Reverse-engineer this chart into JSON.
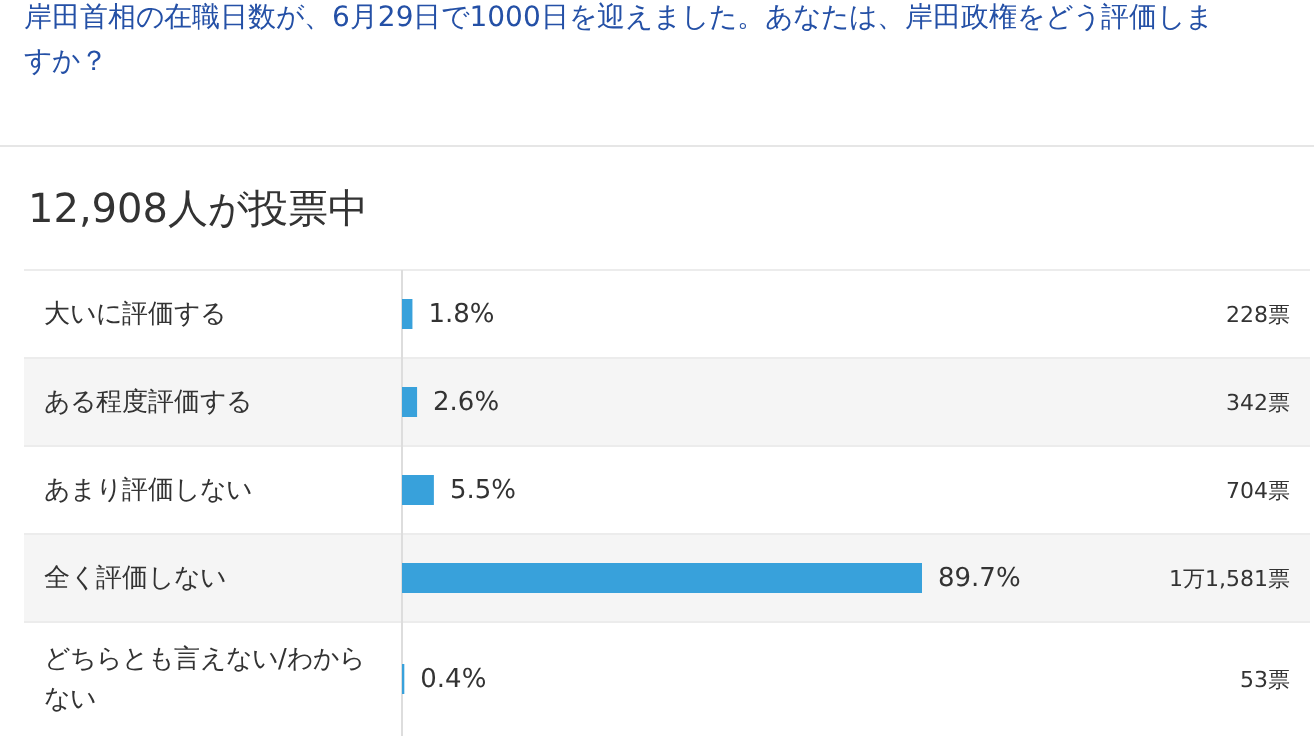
{
  "chart_data": {
    "type": "bar",
    "orientation": "horizontal",
    "title": "岸田首相の在職日数が、6月29日で1000日を迎えました。あなたは、岸田政権をどう評価しますか？",
    "subtitle": "12,908人が投票中",
    "categories": [
      "大いに評価する",
      "ある程度評価する",
      "あまり評価しない",
      "全く評価しない",
      "どちらとも言えない/わからない"
    ],
    "values": [
      1.8,
      2.6,
      5.5,
      89.7,
      0.4
    ],
    "value_labels": [
      "1.8%",
      "2.6%",
      "5.5%",
      "89.7%",
      "0.4%"
    ],
    "color": "#38a1db",
    "annotations": [
      "228票",
      "342票",
      "704票",
      "1万1,581票",
      "53票"
    ]
  }
}
